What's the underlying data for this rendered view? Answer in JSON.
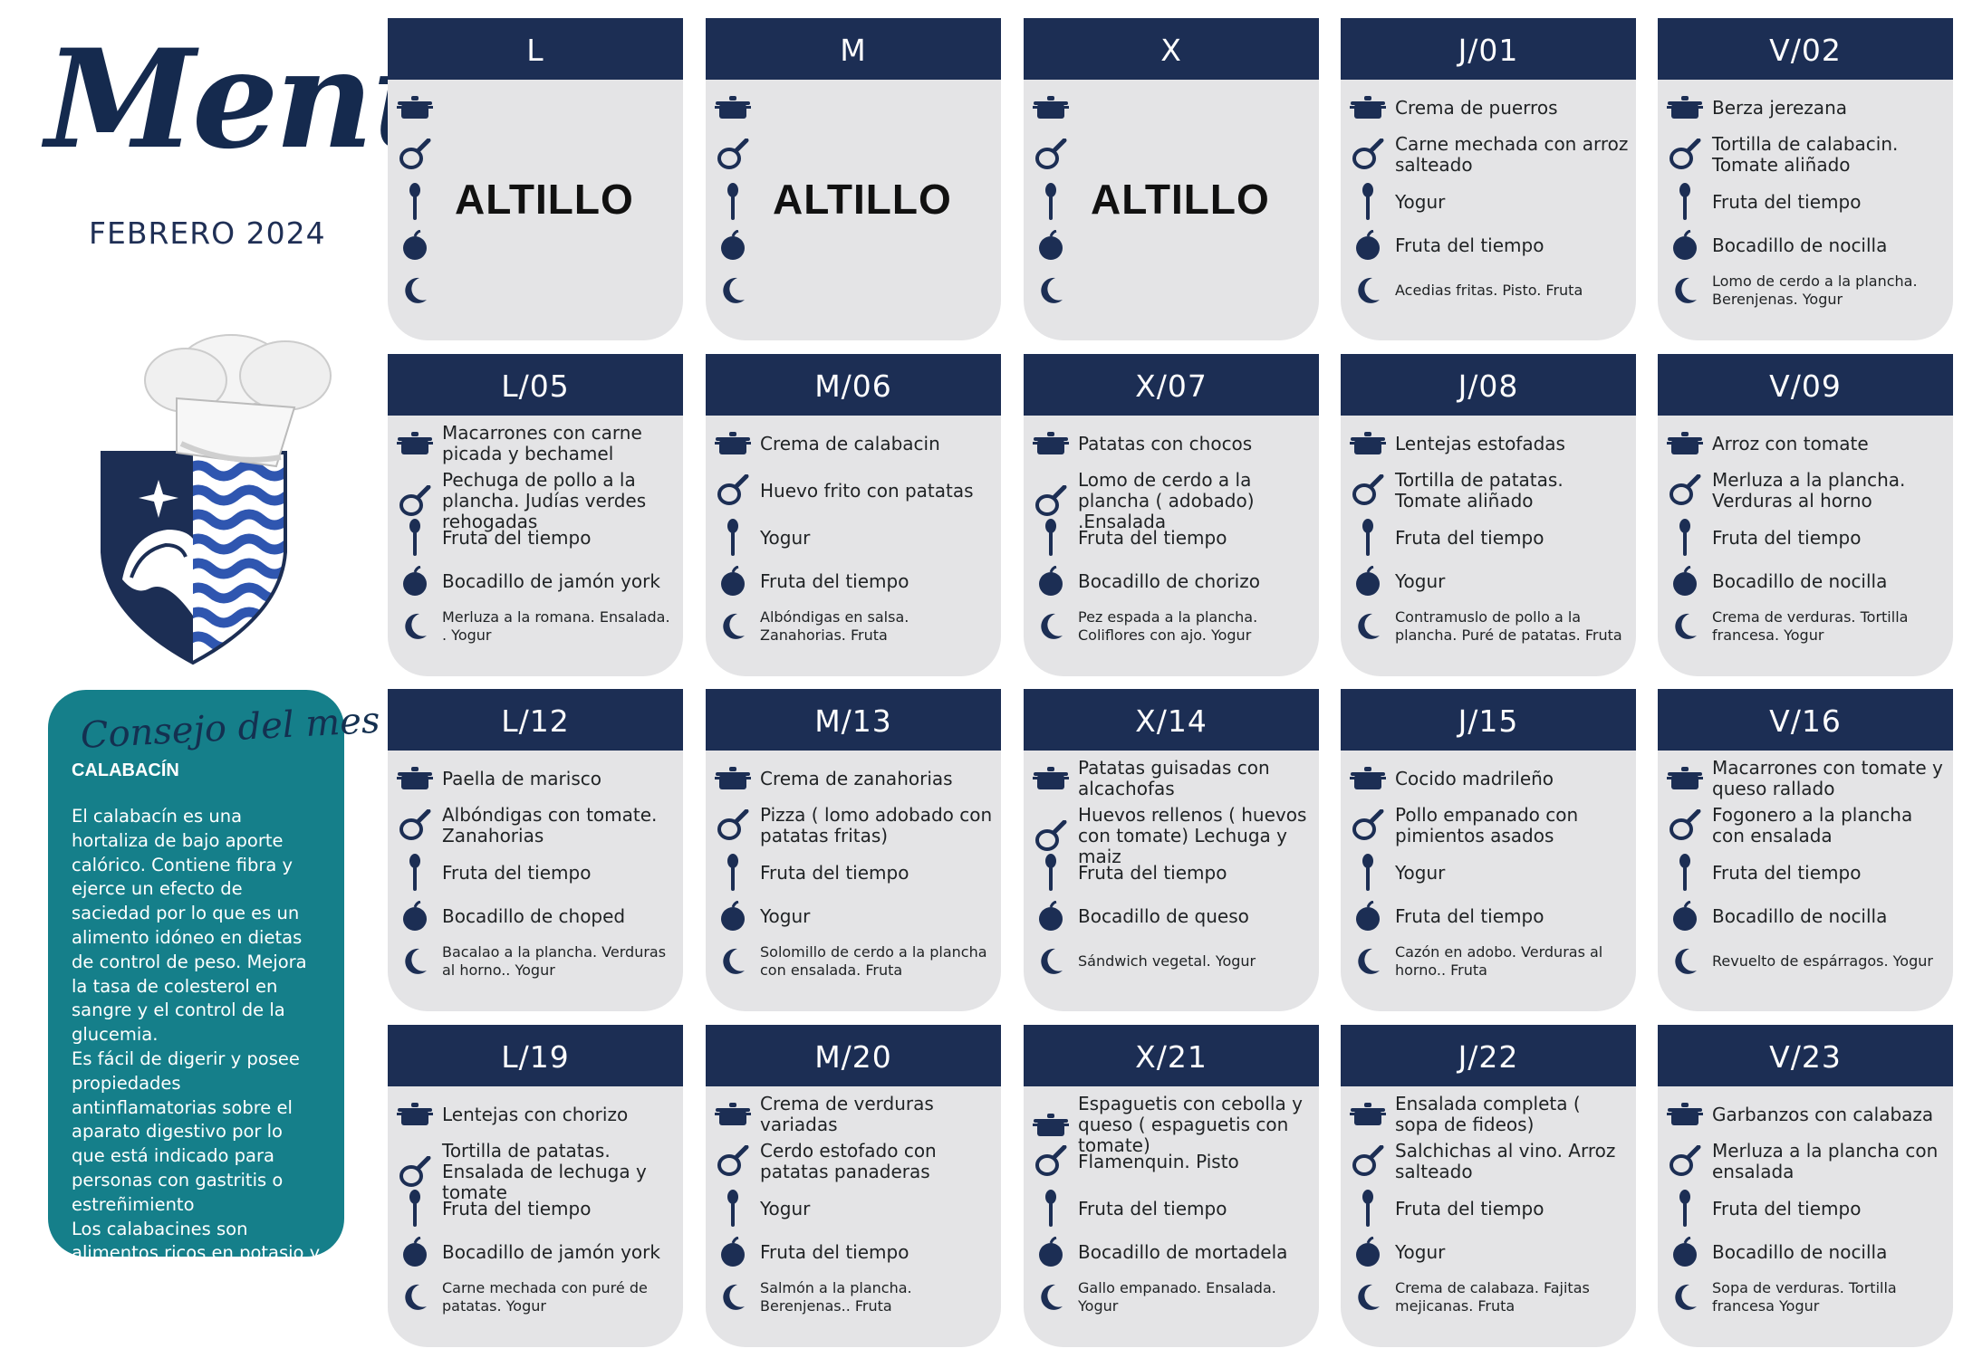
{
  "header": {
    "title": "Menú",
    "month": "FEBRERO 2024"
  },
  "tip": {
    "title": "Consejo del mes",
    "subject": "CALABACÍN",
    "body": " El calabacín es una hortaliza de bajo aporte calórico. Contiene fibra y ejerce un efecto de saciedad por lo que es un alimento idóneo en dietas de control de peso. Mejora la tasa de colesterol en sangre y el control de la glucemia.\nEs fácil de digerir y posee propiedades antinflamatorias sobre el aparato digestivo por lo que está indicado para personas con gastritis o estreñimiento\nLos calabacines son alimentos ricos en potasio y tienen efecto diurético"
  },
  "meal_icons": [
    "pot-icon",
    "frying-pan-icon",
    "spoon-icon",
    "apple-icon",
    "moon-icon"
  ],
  "colors": {
    "navy": "#1c2e54",
    "card": "#e4e4e6",
    "teal": "#157f8a"
  },
  "weeks": [
    [
      {
        "day": "L",
        "altillo": "ALTILLO",
        "meals": []
      },
      {
        "day": "M",
        "altillo": "ALTILLO",
        "meals": []
      },
      {
        "day": "X",
        "altillo": "ALTILLO",
        "meals": []
      },
      {
        "day": "J/01",
        "meals": [
          "Crema de puerros",
          "Carne mechada con arroz salteado",
          "Yogur",
          "Fruta del tiempo",
          "Acedias fritas. Pisto. Fruta"
        ]
      },
      {
        "day": "V/02",
        "meals": [
          "Berza jerezana",
          "Tortilla de calabacin. Tomate aliñado",
          "Fruta del tiempo",
          "Bocadillo de nocilla",
          "Lomo de cerdo a la plancha. Berenjenas. Yogur"
        ]
      }
    ],
    [
      {
        "day": "L/05",
        "meals": [
          "Macarrones con carne picada y bechamel",
          "Pechuga de pollo a la plancha. Judías verdes rehogadas",
          "Fruta del tiempo",
          "Bocadillo de jamón york",
          "Merluza a la romana. Ensalada. . Yogur"
        ]
      },
      {
        "day": "M/06",
        "meals": [
          "Crema de calabacin",
          "Huevo frito con patatas",
          "Yogur",
          "Fruta del tiempo",
          "Albóndigas en salsa. Zanahorias. Fruta"
        ]
      },
      {
        "day": "X/07",
        "meals": [
          "Patatas con chocos",
          "Lomo de cerdo a la plancha ( adobado) .Ensalada",
          "Fruta del tiempo",
          "Bocadillo de chorizo",
          "Pez espada a la plancha. Coliflores con ajo. Yogur"
        ]
      },
      {
        "day": "J/08",
        "meals": [
          "Lentejas estofadas",
          "Tortilla de patatas. Tomate aliñado",
          "Fruta del tiempo",
          "Yogur",
          "Contramuslo de pollo a la plancha. Puré de patatas. Fruta"
        ]
      },
      {
        "day": "V/09",
        "meals": [
          "Arroz con tomate",
          "Merluza a la plancha. Verduras al horno",
          "Fruta del tiempo",
          "Bocadillo de nocilla",
          "Crema de verduras. Tortilla francesa. Yogur"
        ]
      }
    ],
    [
      {
        "day": "L/12",
        "meals": [
          "Paella de marisco",
          "Albóndigas con tomate. Zanahorias",
          "Fruta del tiempo",
          "Bocadillo de choped",
          "Bacalao a la plancha. Verduras al horno.. Yogur"
        ]
      },
      {
        "day": "M/13",
        "meals": [
          "Crema de zanahorias",
          "Pizza ( lomo adobado con patatas fritas)",
          "Fruta del tiempo",
          "Yogur",
          "Solomillo de cerdo  a la plancha con ensalada. Fruta"
        ]
      },
      {
        "day": "X/14",
        "meals": [
          "Patatas guisadas con alcachofas",
          "Huevos rellenos ( huevos con tomate)  Lechuga y maiz",
          "Fruta del tiempo",
          "Bocadillo de queso",
          "Sándwich vegetal. Yogur"
        ]
      },
      {
        "day": "J/15",
        "meals": [
          "Cocido madrileño",
          "Pollo empanado con pimientos asados",
          "Yogur",
          "Fruta del tiempo",
          "Cazón  en adobo. Verduras al horno.. Fruta"
        ]
      },
      {
        "day": "V/16",
        "meals": [
          "Macarrones con tomate y queso rallado",
          "Fogonero a la plancha con ensalada",
          "Fruta del tiempo",
          "Bocadillo de nocilla",
          "Revuelto de espárragos. Yogur"
        ]
      }
    ],
    [
      {
        "day": "L/19",
        "meals": [
          "Lentejas con chorizo",
          "Tortilla de patatas. Ensalada de lechuga y tomate",
          "Fruta del tiempo",
          "Bocadillo de jamón york",
          "Carne mechada con puré de patatas. Yogur"
        ]
      },
      {
        "day": "M/20",
        "meals": [
          "Crema de verduras variadas",
          "Cerdo estofado con patatas panaderas",
          "Yogur",
          "Fruta del tiempo",
          "Salmón a la plancha. Berenjenas.. Fruta"
        ]
      },
      {
        "day": "X/21",
        "meals": [
          "Espaguetis con cebolla y queso ( espaguetis con tomate)",
          "Flamenquin. Pisto",
          "Fruta del tiempo",
          "Bocadillo de mortadela",
          "Gallo empanado. Ensalada. Yogur"
        ]
      },
      {
        "day": "J/22",
        "meals": [
          "Ensalada completa ( sopa de fideos)",
          "Salchichas al vino. Arroz salteado",
          "Fruta del tiempo",
          "Yogur",
          "Crema de calabaza. Fajitas mejicanas. Fruta"
        ]
      },
      {
        "day": "V/23",
        "meals": [
          "Garbanzos con calabaza",
          "Merluza a la plancha con ensalada",
          "Fruta del tiempo",
          "Bocadillo de nocilla",
          "Sopa de verduras. Tortilla francesa  Yogur"
        ]
      }
    ]
  ]
}
